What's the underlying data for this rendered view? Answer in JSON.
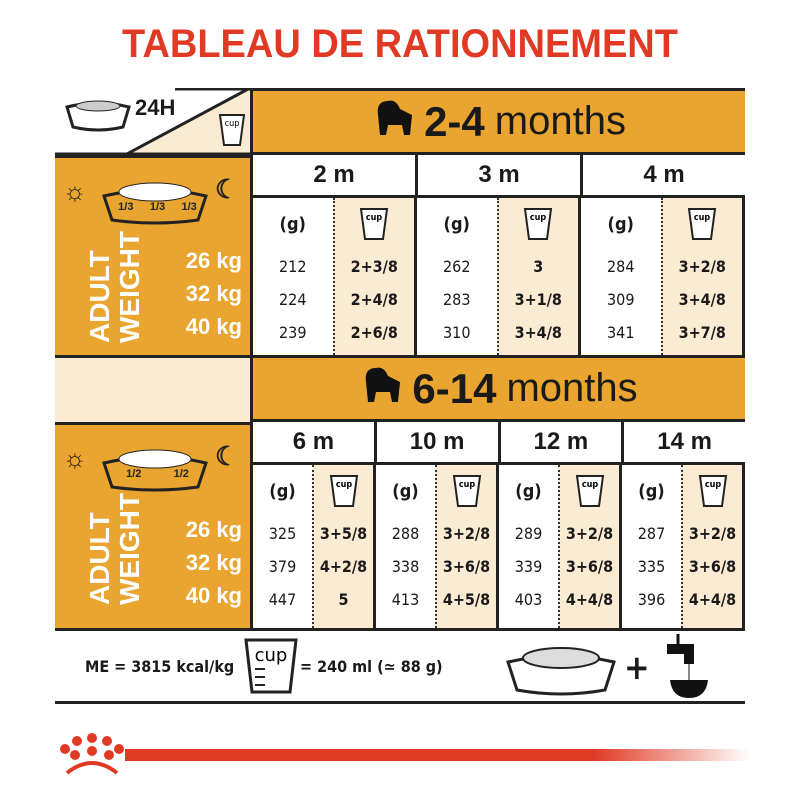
{
  "title": "TABLEAU DE RATIONNEMENT",
  "duration_label": "24H",
  "cup_label": "cup",
  "colors": {
    "title": "#E03A25",
    "panel": "#E9A52F",
    "cup_column": "#FBEBD3"
  },
  "adult_weight_label": [
    "ADULT",
    "WEIGHT"
  ],
  "weights": [
    "26 kg",
    "32 kg",
    "40 kg"
  ],
  "unit_grams": "(g)",
  "sections": [
    {
      "title_num": "2-4",
      "title_unit": "months",
      "meal_fractions": [
        "1/3",
        "1/3",
        "1/3"
      ],
      "months": [
        {
          "label": "2 m",
          "grams": [
            "212",
            "224",
            "239"
          ],
          "cups": [
            "2+3/8",
            "2+4/8",
            "2+6/8"
          ]
        },
        {
          "label": "3 m",
          "grams": [
            "262",
            "283",
            "310"
          ],
          "cups": [
            "3",
            "3+1/8",
            "3+4/8"
          ]
        },
        {
          "label": "4 m",
          "grams": [
            "284",
            "309",
            "341"
          ],
          "cups": [
            "3+2/8",
            "3+4/8",
            "3+7/8"
          ]
        }
      ]
    },
    {
      "title_num": "6-14",
      "title_unit": "months",
      "meal_fractions": [
        "1/2",
        "1/2"
      ],
      "months": [
        {
          "label": "6 m",
          "grams": [
            "325",
            "379",
            "447"
          ],
          "cups": [
            "3+5/8",
            "4+2/8",
            "5"
          ]
        },
        {
          "label": "10 m",
          "grams": [
            "288",
            "338",
            "413"
          ],
          "cups": [
            "3+2/8",
            "3+6/8",
            "4+5/8"
          ]
        },
        {
          "label": "12 m",
          "grams": [
            "289",
            "339",
            "403"
          ],
          "cups": [
            "3+2/8",
            "3+6/8",
            "4+4/8"
          ]
        },
        {
          "label": "14 m",
          "grams": [
            "287",
            "335",
            "396"
          ],
          "cups": [
            "3+2/8",
            "3+6/8",
            "4+4/8"
          ]
        }
      ]
    }
  ],
  "footer": {
    "energy": "ME = 3815 kcal/kg",
    "cup_equiv": "= 240 ml (≃ 88 g)",
    "plus": "+"
  }
}
